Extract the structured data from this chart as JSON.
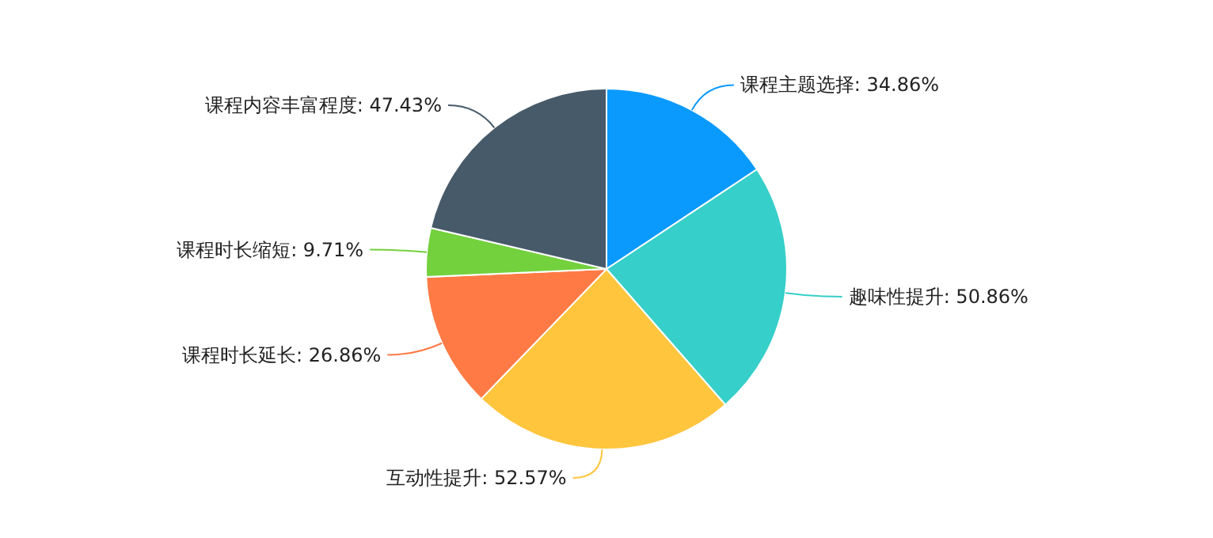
{
  "chart_data": {
    "type": "pie",
    "categories": [
      "课程主题选择",
      "趣味性提升",
      "互动性提升",
      "课程时长延长",
      "课程时长缩短",
      "课程内容丰富程度"
    ],
    "values": [
      34.86,
      50.86,
      52.57,
      26.86,
      9.71,
      47.43
    ],
    "value_labels": [
      "34.86%",
      "50.86%",
      "52.57%",
      "26.86%",
      "9.71%",
      "47.43%"
    ],
    "colors": [
      "#0a9afe",
      "#36cfc9",
      "#ffc53d",
      "#ff7a45",
      "#73d13d",
      "#475a69"
    ],
    "legend": false
  }
}
